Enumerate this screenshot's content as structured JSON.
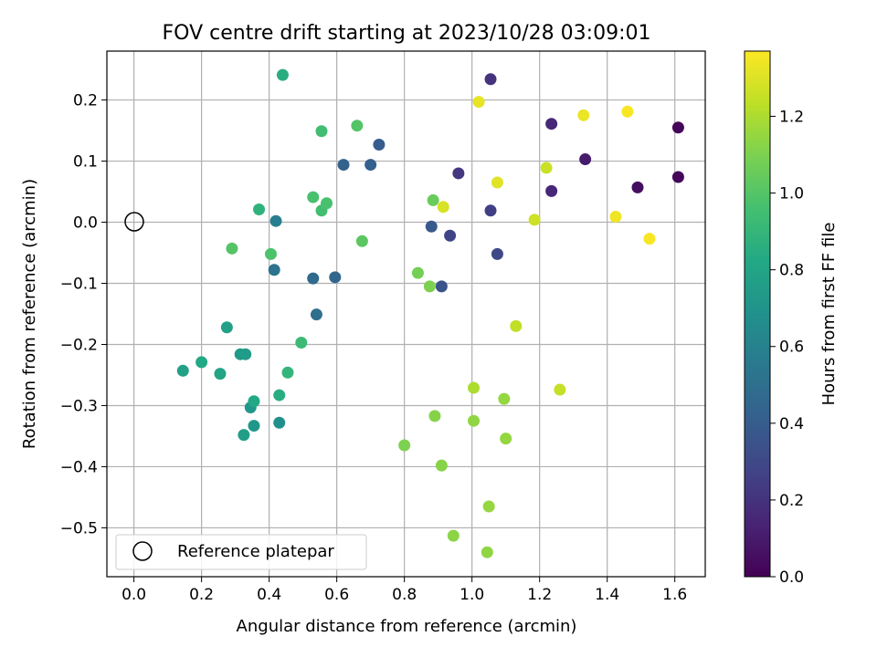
{
  "chart_data": {
    "type": "scatter",
    "title": "FOV centre drift starting at 2023/10/28 03:09:01",
    "xlabel": "Angular distance from reference (arcmin)",
    "ylabel": "Rotation from reference (arcmin)",
    "xlim": [
      -0.08,
      1.69
    ],
    "ylim": [
      -0.58,
      0.28
    ],
    "xticks": [
      0.0,
      0.2,
      0.4,
      0.6,
      0.8,
      1.0,
      1.2,
      1.4,
      1.6
    ],
    "xtick_labels": [
      "0.0",
      "0.2",
      "0.4",
      "0.6",
      "0.8",
      "1.0",
      "1.2",
      "1.4",
      "1.6"
    ],
    "yticks": [
      0.2,
      0.1,
      0.0,
      -0.1,
      -0.2,
      -0.3,
      -0.4,
      -0.5
    ],
    "ytick_labels": [
      "0.2",
      "0.1",
      "0.0",
      "−0.1",
      "−0.2",
      "−0.3",
      "−0.4",
      "−0.5"
    ],
    "grid": true,
    "legend": {
      "position": "lower-left",
      "label": "Reference platepar"
    },
    "reference_point": {
      "x": 0.0,
      "y": 0.0
    },
    "colorbar": {
      "label": "Hours from first FF file",
      "colormap": "viridis",
      "range": [
        0.0,
        1.37
      ],
      "ticks": [
        0.0,
        0.2,
        0.4,
        0.6,
        0.8,
        1.0,
        1.2
      ],
      "tick_labels": [
        "0.0",
        "0.2",
        "0.4",
        "0.6",
        "0.8",
        "1.0",
        "1.2"
      ]
    },
    "points": [
      {
        "x": 1.61,
        "y": 0.155,
        "c": 0.02
      },
      {
        "x": 1.61,
        "y": 0.074,
        "c": 0.02
      },
      {
        "x": 1.49,
        "y": 0.057,
        "c": 0.05
      },
      {
        "x": 1.335,
        "y": 0.103,
        "c": 0.1
      },
      {
        "x": 1.235,
        "y": 0.161,
        "c": 0.15
      },
      {
        "x": 1.235,
        "y": 0.051,
        "c": 0.15
      },
      {
        "x": 1.055,
        "y": 0.234,
        "c": 0.2
      },
      {
        "x": 0.96,
        "y": 0.08,
        "c": 0.22
      },
      {
        "x": 1.055,
        "y": 0.019,
        "c": 0.25
      },
      {
        "x": 0.935,
        "y": -0.022,
        "c": 0.28
      },
      {
        "x": 1.075,
        "y": -0.052,
        "c": 0.3
      },
      {
        "x": 0.91,
        "y": -0.105,
        "c": 0.35
      },
      {
        "x": 0.88,
        "y": -0.007,
        "c": 0.38
      },
      {
        "x": 0.725,
        "y": 0.127,
        "c": 0.4
      },
      {
        "x": 0.7,
        "y": 0.094,
        "c": 0.42
      },
      {
        "x": 0.62,
        "y": 0.094,
        "c": 0.43
      },
      {
        "x": 0.595,
        "y": -0.09,
        "c": 0.45
      },
      {
        "x": 0.53,
        "y": -0.092,
        "c": 0.47
      },
      {
        "x": 0.54,
        "y": -0.151,
        "c": 0.5
      },
      {
        "x": 0.415,
        "y": -0.078,
        "c": 0.52
      },
      {
        "x": 0.42,
        "y": 0.002,
        "c": 0.58
      },
      {
        "x": 0.43,
        "y": -0.328,
        "c": 0.68
      },
      {
        "x": 0.345,
        "y": -0.303,
        "c": 0.72
      },
      {
        "x": 0.355,
        "y": -0.333,
        "c": 0.72
      },
      {
        "x": 0.315,
        "y": -0.216,
        "c": 0.74
      },
      {
        "x": 0.33,
        "y": -0.216,
        "c": 0.75
      },
      {
        "x": 0.325,
        "y": -0.348,
        "c": 0.76
      },
      {
        "x": 0.275,
        "y": -0.172,
        "c": 0.77
      },
      {
        "x": 0.145,
        "y": -0.243,
        "c": 0.78
      },
      {
        "x": 0.255,
        "y": -0.248,
        "c": 0.8
      },
      {
        "x": 0.2,
        "y": -0.229,
        "c": 0.82
      },
      {
        "x": 0.355,
        "y": -0.293,
        "c": 0.82
      },
      {
        "x": 0.43,
        "y": -0.283,
        "c": 0.85
      },
      {
        "x": 0.44,
        "y": 0.241,
        "c": 0.85
      },
      {
        "x": 0.37,
        "y": 0.021,
        "c": 0.88
      },
      {
        "x": 0.455,
        "y": -0.246,
        "c": 0.9
      },
      {
        "x": 0.495,
        "y": -0.197,
        "c": 0.93
      },
      {
        "x": 0.555,
        "y": 0.149,
        "c": 0.95
      },
      {
        "x": 0.555,
        "y": 0.019,
        "c": 0.95
      },
      {
        "x": 0.53,
        "y": 0.041,
        "c": 0.97
      },
      {
        "x": 0.57,
        "y": 0.031,
        "c": 0.97
      },
      {
        "x": 0.405,
        "y": -0.052,
        "c": 0.98
      },
      {
        "x": 0.29,
        "y": -0.043,
        "c": 1.0
      },
      {
        "x": 0.66,
        "y": 0.158,
        "c": 1.0
      },
      {
        "x": 0.675,
        "y": -0.031,
        "c": 1.02
      },
      {
        "x": 0.885,
        "y": 0.036,
        "c": 1.05
      },
      {
        "x": 0.84,
        "y": -0.083,
        "c": 1.08
      },
      {
        "x": 0.875,
        "y": -0.105,
        "c": 1.1
      },
      {
        "x": 0.8,
        "y": -0.365,
        "c": 1.1
      },
      {
        "x": 0.89,
        "y": -0.317,
        "c": 1.12
      },
      {
        "x": 0.91,
        "y": -0.398,
        "c": 1.12
      },
      {
        "x": 0.945,
        "y": -0.513,
        "c": 1.13
      },
      {
        "x": 1.005,
        "y": -0.325,
        "c": 1.14
      },
      {
        "x": 1.045,
        "y": -0.54,
        "c": 1.14
      },
      {
        "x": 1.05,
        "y": -0.465,
        "c": 1.15
      },
      {
        "x": 1.095,
        "y": -0.289,
        "c": 1.15
      },
      {
        "x": 1.1,
        "y": -0.354,
        "c": 1.15
      },
      {
        "x": 1.005,
        "y": -0.271,
        "c": 1.2
      },
      {
        "x": 1.13,
        "y": -0.17,
        "c": 1.24
      },
      {
        "x": 1.26,
        "y": -0.274,
        "c": 1.25
      },
      {
        "x": 1.22,
        "y": 0.089,
        "c": 1.26
      },
      {
        "x": 1.185,
        "y": 0.004,
        "c": 1.27
      },
      {
        "x": 0.915,
        "y": 0.025,
        "c": 1.29
      },
      {
        "x": 1.075,
        "y": 0.065,
        "c": 1.31
      },
      {
        "x": 1.02,
        "y": 0.197,
        "c": 1.32
      },
      {
        "x": 1.33,
        "y": 0.175,
        "c": 1.33
      },
      {
        "x": 1.425,
        "y": 0.009,
        "c": 1.34
      },
      {
        "x": 1.46,
        "y": 0.181,
        "c": 1.36
      },
      {
        "x": 1.525,
        "y": -0.027,
        "c": 1.36
      }
    ]
  }
}
